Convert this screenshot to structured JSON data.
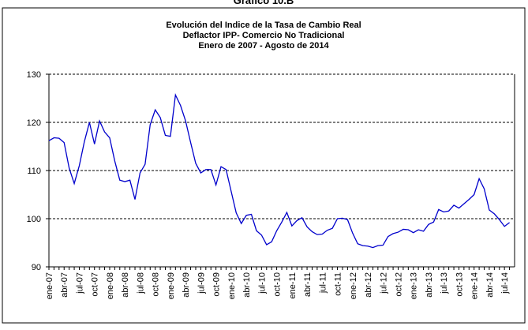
{
  "chart_data": {
    "type": "line",
    "supertitle": "Gráfico 10.B",
    "title": [
      "Evolución del Indice de la Tasa de Cambio Real",
      "Deflactor IPP- Comercio No Tradicional",
      "Enero de 2007 -  Agosto de 2014"
    ],
    "categories": [
      "ene-07",
      null,
      null,
      "abr-07",
      null,
      null,
      "jul-07",
      null,
      null,
      "oct-07",
      null,
      null,
      "ene-08",
      null,
      null,
      "abr-08",
      null,
      null,
      "jul-08",
      null,
      null,
      "oct-08",
      null,
      null,
      "ene-09",
      null,
      null,
      "abr-09",
      null,
      null,
      "jul-09",
      null,
      null,
      "oct-09",
      null,
      null,
      "ene-10",
      null,
      null,
      "abr-10",
      null,
      null,
      "jul-10",
      null,
      null,
      "oct-10",
      null,
      null,
      "ene-11",
      null,
      null,
      "abr-11",
      null,
      null,
      "jul-11",
      null,
      null,
      "oct-11",
      null,
      null,
      "ene-12",
      null,
      null,
      "abr-12",
      null,
      null,
      "jul-12",
      null,
      null,
      "oct-12",
      null,
      null,
      "ene-13",
      null,
      null,
      "abr-13",
      null,
      null,
      "jul-13",
      null,
      null,
      "oct-13",
      null,
      null,
      "ene-14",
      null,
      null,
      "abr-14",
      null,
      null,
      "jul-14",
      null
    ],
    "series": [
      {
        "color": "#0000cc",
        "values": [
          116.2,
          116.8,
          116.7,
          115.8,
          110.5,
          107.3,
          111,
          116,
          120,
          115.5,
          120.3,
          118,
          116.8,
          112,
          108,
          107.7,
          108,
          104,
          109.5,
          111.3,
          119.5,
          122.6,
          121,
          117.3,
          117.1,
          125.7,
          123.5,
          120.3,
          115.8,
          111.5,
          109.5,
          110.2,
          110.2,
          107,
          110.8,
          110.2,
          105.7,
          101.2,
          99,
          100.7,
          100.9,
          97.5,
          96.6,
          94.6,
          95.2,
          97.5,
          99.3,
          101.3,
          98.5,
          99.6,
          100.2,
          98.3,
          97.3,
          96.7,
          96.8,
          97.6,
          98,
          100,
          100.1,
          99.8,
          97,
          94.8,
          94.4,
          94.3,
          94,
          94.4,
          94.5,
          96.3,
          96.9,
          97.2,
          97.8,
          97.7,
          97.1,
          97.7,
          97.4,
          98.8,
          99.3,
          101.9,
          101.4,
          101.6,
          102.8,
          102.2,
          103.1,
          104,
          105,
          108.3,
          106.2,
          101.8,
          101,
          99.8,
          98.4,
          99.2
        ]
      }
    ],
    "ylim": [
      90,
      130
    ],
    "yticks": [
      90,
      100,
      110,
      120,
      130
    ],
    "grid": true
  }
}
